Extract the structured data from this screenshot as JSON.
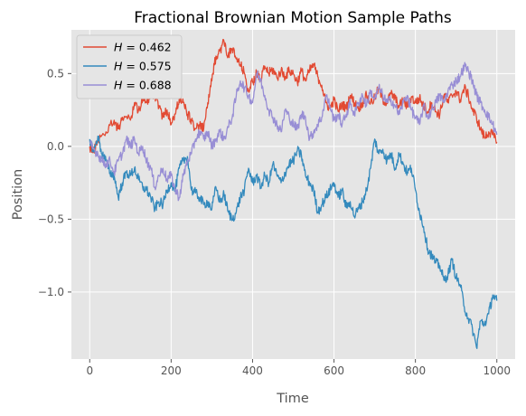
{
  "chart_data": {
    "type": "line",
    "title": "Fractional Brownian Motion Sample Paths",
    "xlabel": "Time",
    "ylabel": "Position",
    "xlim": [
      -45,
      1045
    ],
    "ylim": [
      -1.46,
      0.8
    ],
    "xticks": [
      0,
      200,
      400,
      600,
      800,
      1000
    ],
    "xtick_labels": [
      "0",
      "200",
      "400",
      "600",
      "800",
      "1000"
    ],
    "yticks": [
      -1.0,
      -0.5,
      0.0,
      0.5
    ],
    "ytick_labels": [
      "−1.0",
      "−0.5",
      "0.0",
      "0.5"
    ],
    "grid": true,
    "legend_position": "top-left",
    "series": [
      {
        "name": "H = 0.462",
        "legend_h": "0.462",
        "color": "#e24a33",
        "points": [
          [
            0,
            0.0
          ],
          [
            10,
            -0.04
          ],
          [
            20,
            0.05
          ],
          [
            40,
            0.1
          ],
          [
            60,
            0.18
          ],
          [
            70,
            0.12
          ],
          [
            80,
            0.2
          ],
          [
            100,
            0.18
          ],
          [
            110,
            0.3
          ],
          [
            120,
            0.25
          ],
          [
            130,
            0.32
          ],
          [
            140,
            0.3
          ],
          [
            150,
            0.37
          ],
          [
            160,
            0.35
          ],
          [
            170,
            0.28
          ],
          [
            180,
            0.2
          ],
          [
            190,
            0.25
          ],
          [
            200,
            0.15
          ],
          [
            210,
            0.22
          ],
          [
            220,
            0.33
          ],
          [
            230,
            0.3
          ],
          [
            240,
            0.22
          ],
          [
            250,
            0.18
          ],
          [
            260,
            0.12
          ],
          [
            270,
            0.14
          ],
          [
            280,
            0.12
          ],
          [
            290,
            0.3
          ],
          [
            300,
            0.45
          ],
          [
            310,
            0.62
          ],
          [
            320,
            0.66
          ],
          [
            330,
            0.72
          ],
          [
            340,
            0.62
          ],
          [
            350,
            0.67
          ],
          [
            360,
            0.6
          ],
          [
            370,
            0.56
          ],
          [
            380,
            0.5
          ],
          [
            390,
            0.38
          ],
          [
            400,
            0.44
          ],
          [
            410,
            0.5
          ],
          [
            420,
            0.45
          ],
          [
            430,
            0.55
          ],
          [
            440,
            0.5
          ],
          [
            450,
            0.53
          ],
          [
            460,
            0.47
          ],
          [
            470,
            0.52
          ],
          [
            480,
            0.48
          ],
          [
            490,
            0.52
          ],
          [
            500,
            0.5
          ],
          [
            510,
            0.44
          ],
          [
            520,
            0.52
          ],
          [
            530,
            0.45
          ],
          [
            540,
            0.52
          ],
          [
            550,
            0.56
          ],
          [
            560,
            0.48
          ],
          [
            570,
            0.42
          ],
          [
            580,
            0.3
          ],
          [
            590,
            0.26
          ],
          [
            600,
            0.32
          ],
          [
            610,
            0.24
          ],
          [
            620,
            0.29
          ],
          [
            630,
            0.26
          ],
          [
            640,
            0.35
          ],
          [
            650,
            0.3
          ],
          [
            660,
            0.26
          ],
          [
            670,
            0.3
          ],
          [
            680,
            0.35
          ],
          [
            690,
            0.3
          ],
          [
            700,
            0.33
          ],
          [
            710,
            0.4
          ],
          [
            720,
            0.32
          ],
          [
            730,
            0.3
          ],
          [
            740,
            0.36
          ],
          [
            750,
            0.33
          ],
          [
            760,
            0.27
          ],
          [
            770,
            0.32
          ],
          [
            780,
            0.27
          ],
          [
            790,
            0.34
          ],
          [
            800,
            0.3
          ],
          [
            810,
            0.33
          ],
          [
            820,
            0.28
          ],
          [
            830,
            0.24
          ],
          [
            840,
            0.3
          ],
          [
            850,
            0.24
          ],
          [
            860,
            0.22
          ],
          [
            870,
            0.35
          ],
          [
            880,
            0.3
          ],
          [
            890,
            0.35
          ],
          [
            900,
            0.38
          ],
          [
            910,
            0.32
          ],
          [
            920,
            0.4
          ],
          [
            930,
            0.35
          ],
          [
            940,
            0.25
          ],
          [
            950,
            0.2
          ],
          [
            960,
            0.12
          ],
          [
            970,
            0.06
          ],
          [
            980,
            0.1
          ],
          [
            990,
            0.08
          ],
          [
            1000,
            0.03
          ]
        ]
      },
      {
        "name": "H = 0.575",
        "legend_h": "0.575",
        "color": "#348abd",
        "points": [
          [
            0,
            0.05
          ],
          [
            10,
            -0.04
          ],
          [
            20,
            0.07
          ],
          [
            30,
            -0.05
          ],
          [
            40,
            -0.1
          ],
          [
            50,
            -0.18
          ],
          [
            60,
            -0.2
          ],
          [
            70,
            -0.35
          ],
          [
            80,
            -0.25
          ],
          [
            90,
            -0.18
          ],
          [
            100,
            -0.2
          ],
          [
            110,
            -0.15
          ],
          [
            120,
            -0.23
          ],
          [
            130,
            -0.28
          ],
          [
            140,
            -0.3
          ],
          [
            150,
            -0.35
          ],
          [
            160,
            -0.43
          ],
          [
            170,
            -0.38
          ],
          [
            180,
            -0.4
          ],
          [
            190,
            -0.3
          ],
          [
            200,
            -0.25
          ],
          [
            210,
            -0.3
          ],
          [
            220,
            -0.15
          ],
          [
            230,
            -0.1
          ],
          [
            240,
            -0.07
          ],
          [
            250,
            -0.3
          ],
          [
            260,
            -0.32
          ],
          [
            270,
            -0.35
          ],
          [
            280,
            -0.4
          ],
          [
            290,
            -0.38
          ],
          [
            300,
            -0.43
          ],
          [
            310,
            -0.28
          ],
          [
            320,
            -0.38
          ],
          [
            330,
            -0.33
          ],
          [
            340,
            -0.45
          ],
          [
            350,
            -0.5
          ],
          [
            360,
            -0.45
          ],
          [
            370,
            -0.35
          ],
          [
            380,
            -0.3
          ],
          [
            390,
            -0.15
          ],
          [
            400,
            -0.25
          ],
          [
            410,
            -0.2
          ],
          [
            420,
            -0.28
          ],
          [
            430,
            -0.2
          ],
          [
            440,
            -0.25
          ],
          [
            450,
            -0.12
          ],
          [
            460,
            -0.2
          ],
          [
            470,
            -0.25
          ],
          [
            480,
            -0.18
          ],
          [
            490,
            -0.12
          ],
          [
            500,
            -0.1
          ],
          [
            510,
            -0.03
          ],
          [
            520,
            -0.06
          ],
          [
            530,
            -0.2
          ],
          [
            540,
            -0.25
          ],
          [
            550,
            -0.3
          ],
          [
            560,
            -0.45
          ],
          [
            570,
            -0.4
          ],
          [
            580,
            -0.35
          ],
          [
            590,
            -0.3
          ],
          [
            600,
            -0.25
          ],
          [
            610,
            -0.35
          ],
          [
            620,
            -0.3
          ],
          [
            630,
            -0.42
          ],
          [
            640,
            -0.38
          ],
          [
            650,
            -0.48
          ],
          [
            660,
            -0.43
          ],
          [
            670,
            -0.38
          ],
          [
            680,
            -0.3
          ],
          [
            690,
            -0.15
          ],
          [
            700,
            0.05
          ],
          [
            710,
            -0.05
          ],
          [
            720,
            -0.02
          ],
          [
            730,
            -0.1
          ],
          [
            740,
            -0.05
          ],
          [
            750,
            -0.15
          ],
          [
            760,
            -0.05
          ],
          [
            770,
            -0.12
          ],
          [
            780,
            -0.18
          ],
          [
            790,
            -0.15
          ],
          [
            800,
            -0.3
          ],
          [
            810,
            -0.45
          ],
          [
            820,
            -0.55
          ],
          [
            830,
            -0.7
          ],
          [
            840,
            -0.75
          ],
          [
            850,
            -0.8
          ],
          [
            860,
            -0.82
          ],
          [
            870,
            -0.92
          ],
          [
            880,
            -0.88
          ],
          [
            890,
            -0.78
          ],
          [
            900,
            -0.9
          ],
          [
            910,
            -0.95
          ],
          [
            920,
            -1.1
          ],
          [
            930,
            -1.18
          ],
          [
            940,
            -1.25
          ],
          [
            950,
            -1.38
          ],
          [
            960,
            -1.2
          ],
          [
            970,
            -1.22
          ],
          [
            980,
            -1.15
          ],
          [
            990,
            -1.02
          ],
          [
            1000,
            -1.06
          ]
        ]
      },
      {
        "name": "H = 0.688",
        "legend_h": "0.688",
        "color": "#988ed5",
        "points": [
          [
            0,
            0.02
          ],
          [
            10,
            -0.02
          ],
          [
            20,
            -0.05
          ],
          [
            30,
            -0.1
          ],
          [
            40,
            -0.12
          ],
          [
            50,
            -0.1
          ],
          [
            60,
            -0.18
          ],
          [
            70,
            -0.1
          ],
          [
            80,
            -0.05
          ],
          [
            90,
            0.05
          ],
          [
            100,
            0.0
          ],
          [
            110,
            0.05
          ],
          [
            120,
            -0.05
          ],
          [
            130,
            0.0
          ],
          [
            140,
            -0.1
          ],
          [
            150,
            -0.15
          ],
          [
            160,
            -0.28
          ],
          [
            170,
            -0.2
          ],
          [
            180,
            -0.15
          ],
          [
            190,
            -0.23
          ],
          [
            200,
            -0.2
          ],
          [
            210,
            -0.3
          ],
          [
            220,
            -0.35
          ],
          [
            230,
            -0.2
          ],
          [
            240,
            -0.1
          ],
          [
            250,
            -0.05
          ],
          [
            260,
            0.05
          ],
          [
            270,
            0.1
          ],
          [
            280,
            0.05
          ],
          [
            290,
            0.1
          ],
          [
            300,
            0.0
          ],
          [
            310,
            0.05
          ],
          [
            320,
            0.1
          ],
          [
            330,
            0.05
          ],
          [
            340,
            0.13
          ],
          [
            350,
            0.2
          ],
          [
            360,
            0.35
          ],
          [
            370,
            0.45
          ],
          [
            380,
            0.4
          ],
          [
            390,
            0.35
          ],
          [
            400,
            0.3
          ],
          [
            410,
            0.5
          ],
          [
            420,
            0.45
          ],
          [
            430,
            0.35
          ],
          [
            440,
            0.25
          ],
          [
            450,
            0.2
          ],
          [
            460,
            0.15
          ],
          [
            470,
            0.1
          ],
          [
            480,
            0.25
          ],
          [
            490,
            0.2
          ],
          [
            500,
            0.15
          ],
          [
            510,
            0.12
          ],
          [
            520,
            0.22
          ],
          [
            530,
            0.2
          ],
          [
            540,
            0.05
          ],
          [
            550,
            0.1
          ],
          [
            560,
            0.15
          ],
          [
            570,
            0.2
          ],
          [
            580,
            0.35
          ],
          [
            590,
            0.28
          ],
          [
            600,
            0.18
          ],
          [
            610,
            0.22
          ],
          [
            620,
            0.15
          ],
          [
            630,
            0.22
          ],
          [
            640,
            0.3
          ],
          [
            650,
            0.22
          ],
          [
            660,
            0.3
          ],
          [
            670,
            0.35
          ],
          [
            680,
            0.28
          ],
          [
            690,
            0.38
          ],
          [
            700,
            0.32
          ],
          [
            710,
            0.4
          ],
          [
            720,
            0.35
          ],
          [
            730,
            0.3
          ],
          [
            740,
            0.32
          ],
          [
            750,
            0.28
          ],
          [
            760,
            0.22
          ],
          [
            770,
            0.3
          ],
          [
            780,
            0.35
          ],
          [
            790,
            0.25
          ],
          [
            800,
            0.2
          ],
          [
            810,
            0.15
          ],
          [
            820,
            0.28
          ],
          [
            830,
            0.2
          ],
          [
            840,
            0.25
          ],
          [
            850,
            0.3
          ],
          [
            860,
            0.35
          ],
          [
            870,
            0.3
          ],
          [
            880,
            0.38
          ],
          [
            890,
            0.42
          ],
          [
            900,
            0.45
          ],
          [
            910,
            0.48
          ],
          [
            920,
            0.55
          ],
          [
            930,
            0.52
          ],
          [
            940,
            0.45
          ],
          [
            950,
            0.35
          ],
          [
            960,
            0.3
          ],
          [
            970,
            0.25
          ],
          [
            980,
            0.2
          ],
          [
            990,
            0.15
          ],
          [
            1000,
            0.08
          ]
        ]
      }
    ]
  }
}
